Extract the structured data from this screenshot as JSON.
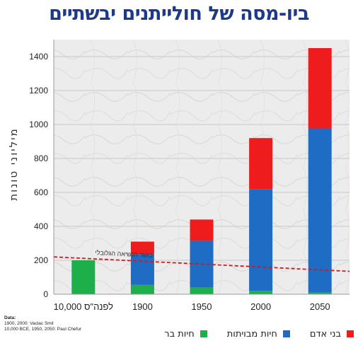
{
  "title": "ביו-מסה של חולייתנים יבשתיים",
  "source": {
    "title": "Data:",
    "lines": [
      "1900, 2000: Vaclac Smil",
      "10,000 BCE, 1950, 2050: Paul Chefur"
    ]
  },
  "colors": {
    "humans": "#ee1c1c",
    "domesticated": "#1f6cc4",
    "wild": "#1db04a",
    "trend_line": "#c81e1e",
    "background": "#e9e9e9"
  },
  "chart_data": {
    "type": "bar",
    "stacked": true,
    "categories": [
      "10,000 לפנה\"ס",
      "1900",
      "1950",
      "2000",
      "2050"
    ],
    "series": [
      {
        "name": "חיות בר",
        "color": "#1db04a",
        "values": [
          200,
          55,
          40,
          20,
          10
        ]
      },
      {
        "name": "חיות מבויתות",
        "color": "#1f6cc4",
        "values": [
          0,
          180,
          275,
          600,
          965
        ]
      },
      {
        "name": "בני אדם",
        "color": "#ee1c1c",
        "values": [
          0,
          75,
          125,
          300,
          475
        ]
      }
    ],
    "ylabel": "מיליוני טונות",
    "ylim": [
      0,
      1500
    ],
    "yticks": [
      0,
      200,
      400,
      600,
      800,
      1000,
      1200,
      1400
    ],
    "grid": true,
    "legend_position": "bottom",
    "annotation": {
      "text": "כושר הנשיאה הגלובלי",
      "line_start": 220,
      "line_end": 135
    }
  }
}
